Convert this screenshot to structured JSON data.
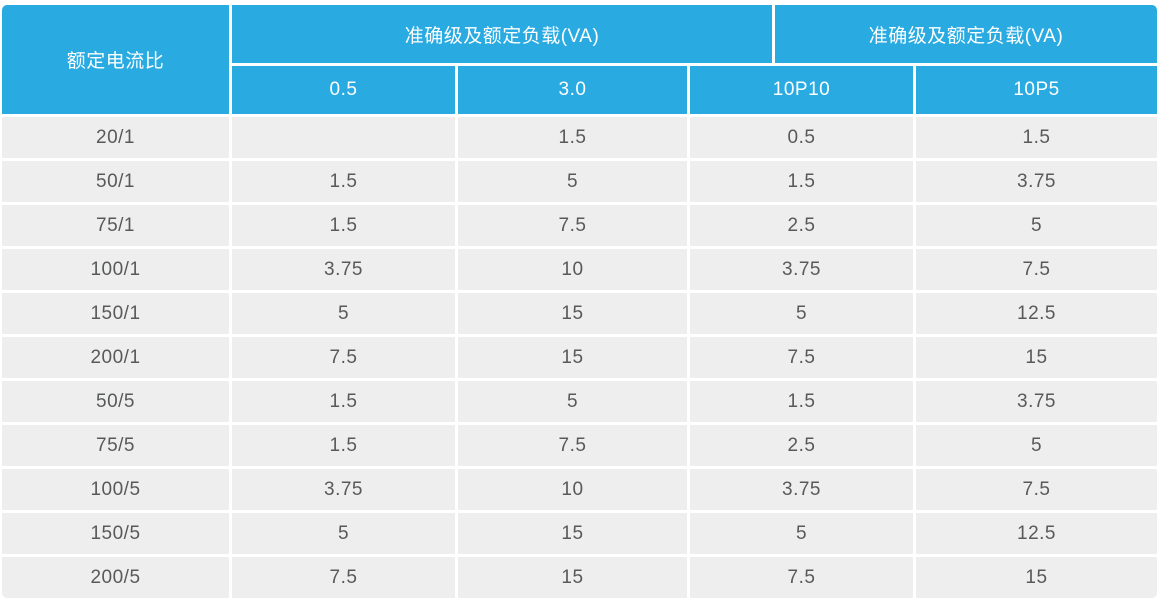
{
  "colors": {
    "header_bg": "#29abe2",
    "header_text": "#fefefe",
    "row_bg": "#eeeeee",
    "cell_text": "#58595b",
    "page_bg": "#ffffff"
  },
  "chart_data": {
    "type": "table",
    "ratio_column_header": "额定电流比",
    "group_headers": [
      "准确级及额定负载(VA)",
      "准确级及额定负载(VA)"
    ],
    "sub_headers": [
      "0.5",
      "3.0",
      "10P10",
      "10P5"
    ],
    "rows": [
      [
        "20/1",
        "",
        "1.5",
        "0.5",
        "1.5"
      ],
      [
        "50/1",
        "1.5",
        "5",
        "1.5",
        "3.75"
      ],
      [
        "75/1",
        "1.5",
        "7.5",
        "2.5",
        "5"
      ],
      [
        "100/1",
        "3.75",
        "10",
        "3.75",
        "7.5"
      ],
      [
        "150/1",
        "5",
        "15",
        "5",
        "12.5"
      ],
      [
        "200/1",
        "7.5",
        "15",
        "7.5",
        "15"
      ],
      [
        "50/5",
        "1.5",
        "5",
        "1.5",
        "3.75"
      ],
      [
        "75/5",
        "1.5",
        "7.5",
        "2.5",
        "5"
      ],
      [
        "100/5",
        "3.75",
        "10",
        "3.75",
        "7.5"
      ],
      [
        "150/5",
        "5",
        "15",
        "5",
        "12.5"
      ],
      [
        "200/5",
        "7.5",
        "15",
        "7.5",
        "15"
      ]
    ]
  }
}
